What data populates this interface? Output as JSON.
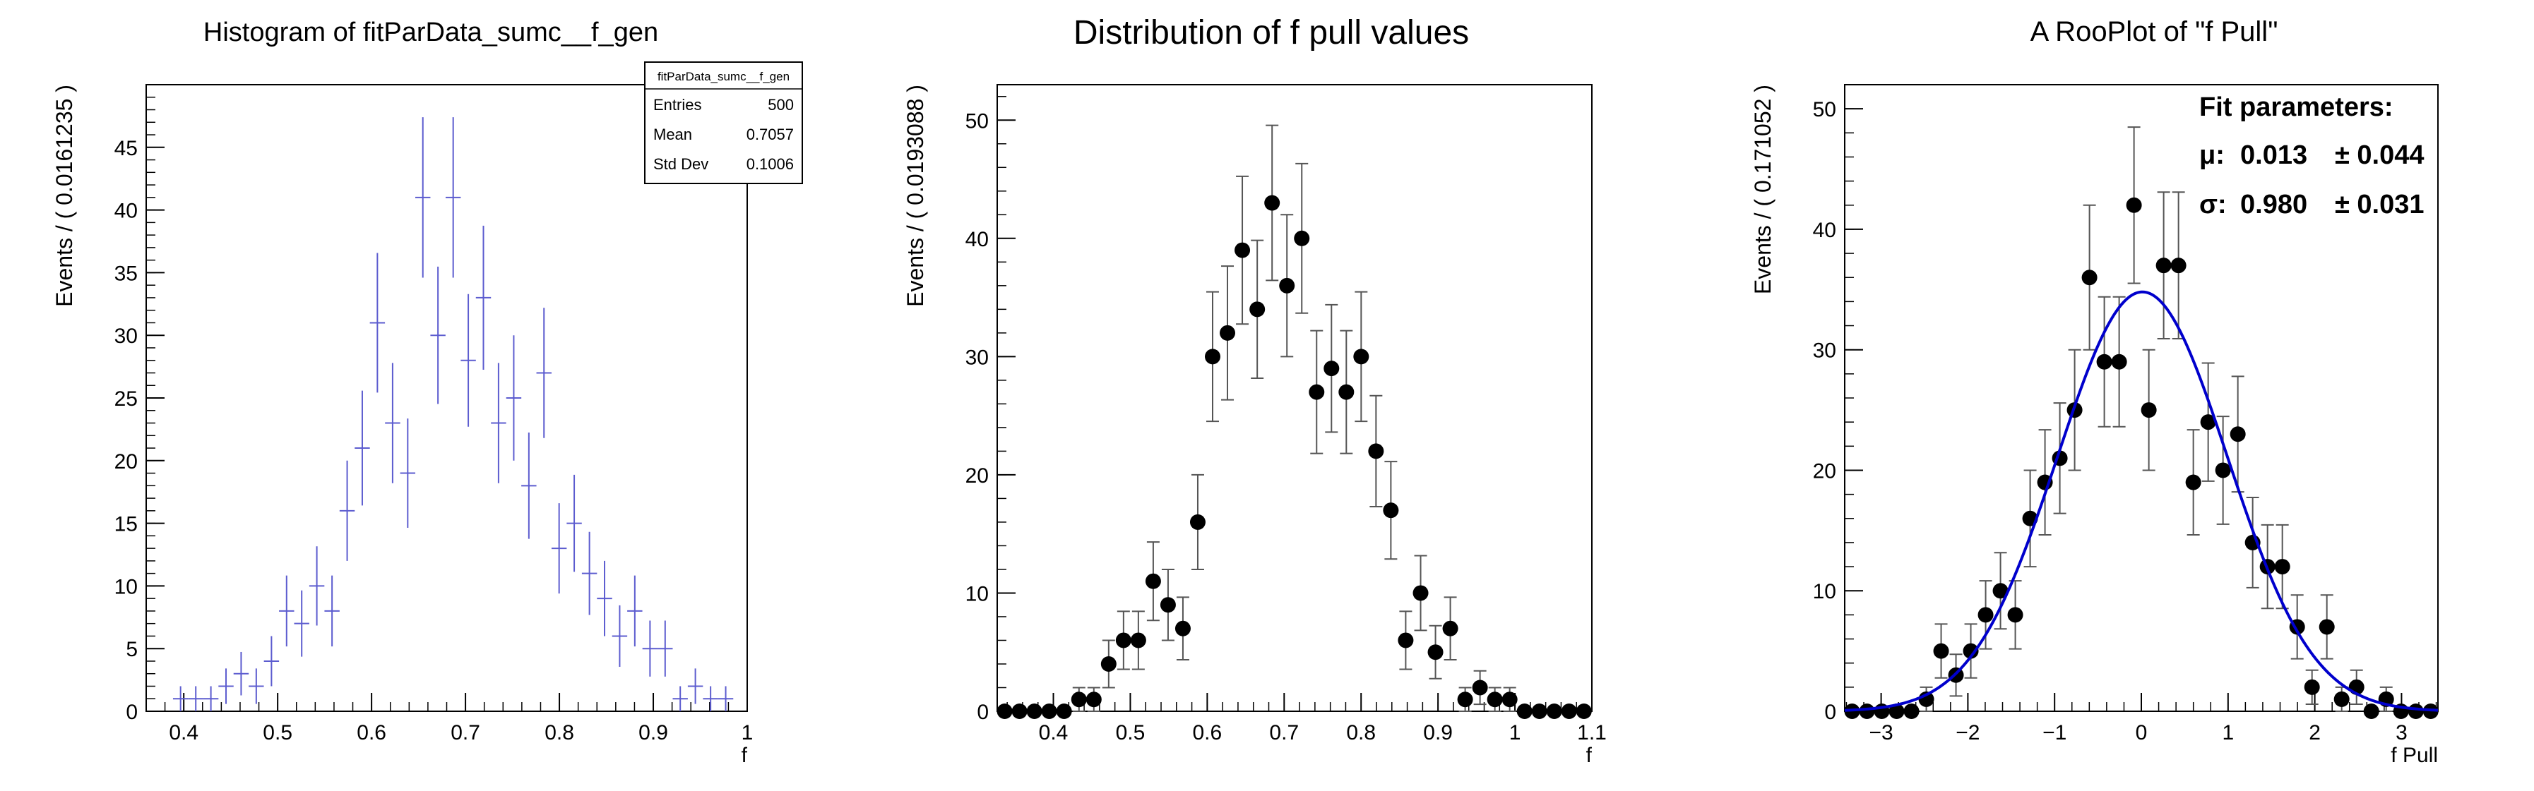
{
  "colors": {
    "hist": "#5c5ccf",
    "points": "#000000",
    "fit": "#0000cc",
    "axis": "#000000",
    "errbar": "#555555"
  },
  "chart_data": [
    {
      "type": "scatter",
      "title": "Histogram of fitParData_sumc__f_gen",
      "xlabel": "f",
      "ylabel": "Events / ( 0.0161235 )",
      "xlim": [
        0.36,
        1.0
      ],
      "ylim": [
        0,
        50
      ],
      "xticks": [
        0.4,
        0.5,
        0.6,
        0.7,
        0.8,
        0.9,
        1.0
      ],
      "xtick_labels": [
        "0.4",
        "0.5",
        "0.6",
        "0.7",
        "0.8",
        "0.9",
        "1"
      ],
      "yticks": [
        0,
        5,
        10,
        15,
        20,
        25,
        30,
        35,
        40,
        45
      ],
      "ytick_labels": [
        "0",
        "5",
        "10",
        "15",
        "20",
        "25",
        "30",
        "35",
        "40",
        "45"
      ],
      "bin_width": 0.0161235,
      "x": [
        0.3966,
        0.4128,
        0.4289,
        0.445,
        0.4611,
        0.4772,
        0.4934,
        0.5095,
        0.5256,
        0.5417,
        0.5579,
        0.574,
        0.5901,
        0.6062,
        0.6224,
        0.6385,
        0.6546,
        0.6707,
        0.6869,
        0.703,
        0.7191,
        0.7352,
        0.7514,
        0.7675,
        0.7836,
        0.7997,
        0.8158,
        0.832,
        0.8481,
        0.8642,
        0.8803,
        0.8965,
        0.9126,
        0.9287,
        0.9448,
        0.961,
        0.9771,
        0.9932
      ],
      "values": [
        1,
        1,
        1,
        2,
        3,
        2,
        4,
        8,
        7,
        10,
        8,
        16,
        21,
        31,
        23,
        19,
        41,
        30,
        41,
        28,
        33,
        23,
        25,
        18,
        27,
        13,
        15,
        11,
        9,
        6,
        8,
        5,
        5,
        1,
        2,
        1,
        1,
        0
      ],
      "stats_box": {
        "title": "fitParData_sumc__f_gen",
        "rows": [
          {
            "label": "Entries",
            "value": "500"
          },
          {
            "label": "Mean",
            "value": "0.7057"
          },
          {
            "label": "Std Dev",
            "value": "0.1006"
          }
        ]
      },
      "style": "histogram-error-crosses",
      "grid": false
    },
    {
      "type": "scatter",
      "title": "Distribution of f pull values",
      "xlabel": "f",
      "ylabel": "Events / ( 0.0193088 )",
      "xlim": [
        0.327,
        1.1
      ],
      "ylim": [
        0,
        53
      ],
      "xticks": [
        0.4,
        0.5,
        0.6,
        0.7,
        0.8,
        0.9,
        1.0,
        1.1
      ],
      "xtick_labels": [
        "0.4",
        "0.5",
        "0.6",
        "0.7",
        "0.8",
        "0.9",
        "1",
        "1.1"
      ],
      "yticks": [
        0,
        10,
        20,
        30,
        40,
        50
      ],
      "ytick_labels": [
        "0",
        "10",
        "20",
        "30",
        "40",
        "50"
      ],
      "bin_width": 0.0193088,
      "x": [
        0.3367,
        0.356,
        0.3753,
        0.3946,
        0.4139,
        0.4333,
        0.4526,
        0.4719,
        0.4912,
        0.5105,
        0.5298,
        0.5491,
        0.5684,
        0.5877,
        0.607,
        0.6263,
        0.6456,
        0.665,
        0.6843,
        0.7036,
        0.7229,
        0.7422,
        0.7615,
        0.7808,
        0.8001,
        0.8194,
        0.8387,
        0.858,
        0.8774,
        0.8967,
        0.916,
        0.9353,
        0.9546,
        0.9739,
        0.9932,
        1.0125,
        1.0318,
        1.0511,
        1.0704,
        1.0897
      ],
      "values": [
        0,
        0,
        0,
        0,
        0,
        1,
        1,
        4,
        6,
        6,
        11,
        9,
        7,
        16,
        30,
        32,
        39,
        34,
        43,
        36,
        40,
        27,
        29,
        27,
        30,
        22,
        17,
        6,
        10,
        5,
        7,
        1,
        2,
        1,
        1,
        0,
        0,
        0,
        0,
        0
      ],
      "style": "markers-with-error-bars",
      "grid": false
    },
    {
      "type": "scatter",
      "title": "A RooPlot of \"f Pull\"",
      "xlabel": "f Pull",
      "ylabel": "Events / ( 0.171052 )",
      "xlim": [
        -3.42,
        3.42
      ],
      "ylim": [
        0,
        52
      ],
      "xticks": [
        -3,
        -2,
        -1,
        0,
        1,
        2,
        3
      ],
      "xtick_labels": [
        "−3",
        "−2",
        "−1",
        "0",
        "1",
        "2",
        "3"
      ],
      "yticks": [
        0,
        10,
        20,
        30,
        40,
        50
      ],
      "ytick_labels": [
        "0",
        "10",
        "20",
        "30",
        "40",
        "50"
      ],
      "bin_width": 0.171052,
      "x": [
        -3.3345,
        -3.1634,
        -2.9924,
        -2.8213,
        -2.6503,
        -2.4792,
        -2.3082,
        -2.1371,
        -1.9661,
        -1.795,
        -1.624,
        -1.453,
        -1.2819,
        -1.1109,
        -0.9398,
        -0.7688,
        -0.5977,
        -0.4267,
        -0.2556,
        -0.0846,
        0.0865,
        0.2575,
        0.4286,
        0.5996,
        0.7707,
        0.9417,
        1.1128,
        1.2838,
        1.4549,
        1.6259,
        1.797,
        1.968,
        2.1391,
        2.3101,
        2.4812,
        2.6522,
        2.8233,
        2.9943,
        3.1654,
        3.3364
      ],
      "values": [
        0,
        0,
        0,
        0,
        0,
        1,
        5,
        3,
        5,
        8,
        10,
        8,
        16,
        19,
        21,
        25,
        36,
        29,
        29,
        42,
        25,
        37,
        37,
        19,
        24,
        20,
        23,
        14,
        12,
        12,
        7,
        2,
        7,
        1,
        2,
        0,
        1,
        0,
        0,
        0
      ],
      "fit": {
        "type": "gaussian",
        "mu": 0.013,
        "sigma": 0.98,
        "amplitude": 34.8
      },
      "fit_parameters": {
        "title": "Fit parameters:",
        "rows": [
          {
            "symbol": "μ:",
            "value": "0.013",
            "error": "± 0.044"
          },
          {
            "symbol": "σ:",
            "value": "0.980",
            "error": "± 0.031"
          }
        ]
      },
      "style": "markers-with-error-bars-and-fit",
      "grid": false
    }
  ]
}
